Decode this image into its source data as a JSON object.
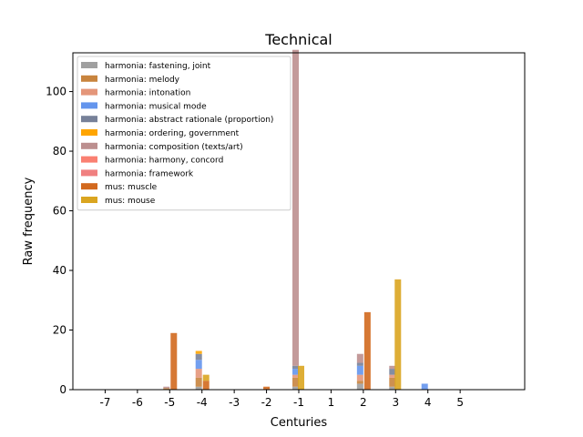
{
  "chart_data": {
    "type": "bar",
    "stacked": true,
    "title": "Technical",
    "xlabel": "Centuries",
    "ylabel": "Raw frequency",
    "xlim": [
      -8,
      6
    ],
    "ylim": [
      0,
      113
    ],
    "xticks": [
      "-7",
      "-6",
      "-5",
      "-4",
      "-3",
      "-2",
      "-1",
      "1",
      "2",
      "3",
      "4",
      "5"
    ],
    "yticks": [
      "0",
      "20",
      "40",
      "60",
      "80",
      "100"
    ],
    "legend_position": "top-left",
    "grid": false,
    "series": [
      {
        "name": "harmonia: fastening, joint",
        "color": "#a0a0a0",
        "points": [
          {
            "x": -4,
            "y": 1
          },
          {
            "x": -1,
            "y": 1
          },
          {
            "x": 2,
            "y": 2
          },
          {
            "x": 3,
            "y": 1
          }
        ]
      },
      {
        "name": "harmonia: melody",
        "color": "#c8843e",
        "points": [
          {
            "x": -5,
            "y": 0.5
          },
          {
            "x": -4,
            "y": 3
          },
          {
            "x": -1,
            "y": 3
          },
          {
            "x": 2,
            "y": 1
          },
          {
            "x": 3,
            "y": 3
          }
        ]
      },
      {
        "name": "harmonia: intonation",
        "color": "#e4967a",
        "points": [
          {
            "x": -4,
            "y": 3
          },
          {
            "x": -1,
            "y": 1
          },
          {
            "x": 2,
            "y": 2
          },
          {
            "x": 3,
            "y": 1
          }
        ]
      },
      {
        "name": "harmonia: musical mode",
        "color": "#6495ed",
        "points": [
          {
            "x": -4,
            "y": 3
          },
          {
            "x": -1,
            "y": 2
          },
          {
            "x": 2,
            "y": 3
          },
          {
            "x": 4,
            "y": 2
          }
        ]
      },
      {
        "name": "harmonia: abstract rationale (proportion)",
        "color": "#778199",
        "points": [
          {
            "x": -4,
            "y": 2
          },
          {
            "x": -1,
            "y": 1
          },
          {
            "x": 2,
            "y": 1
          },
          {
            "x": 3,
            "y": 2
          }
        ]
      },
      {
        "name": "harmonia: ordering, government",
        "color": "#ffa500",
        "points": [
          {
            "x": -4,
            "y": 1
          }
        ]
      },
      {
        "name": "harmonia: composition (texts/art)",
        "color": "#bc8f8f",
        "points": [
          {
            "x": -5,
            "y": 0.5
          },
          {
            "x": -1,
            "y": 106
          },
          {
            "x": 2,
            "y": 3
          },
          {
            "x": 3,
            "y": 1
          }
        ]
      },
      {
        "name": "harmonia: harmony, concord",
        "color": "#fa8072",
        "points": []
      },
      {
        "name": "harmonia: framework",
        "color": "#f08080",
        "points": []
      },
      {
        "name": "mus: muscle",
        "color": "#d2691e",
        "points": [
          {
            "x": -5,
            "y": 19
          },
          {
            "x": -4,
            "y": 3
          },
          {
            "x": -2,
            "y": 1
          },
          {
            "x": 2,
            "y": 26
          }
        ]
      },
      {
        "name": "mus: mouse",
        "color": "#daa520",
        "points": [
          {
            "x": -4,
            "y": 2
          },
          {
            "x": -1,
            "y": 8
          },
          {
            "x": 3,
            "y": 37
          }
        ]
      }
    ]
  }
}
